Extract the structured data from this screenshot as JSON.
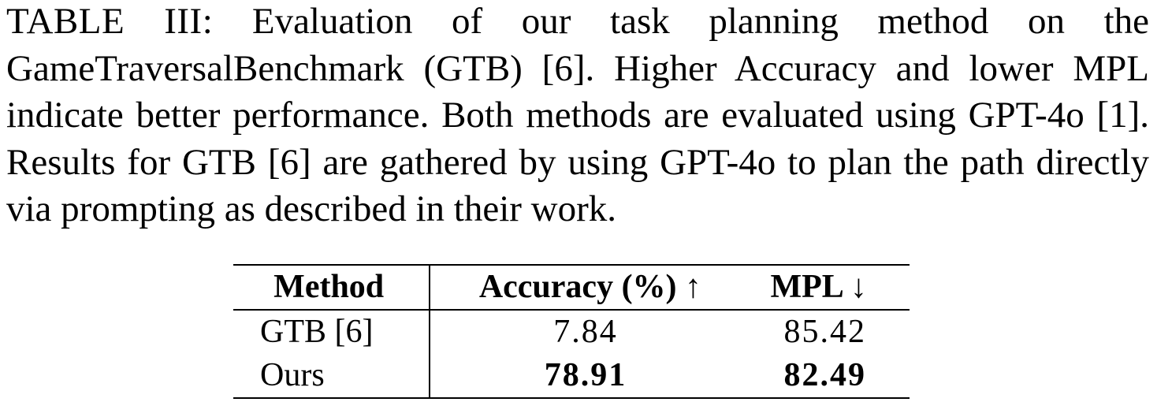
{
  "caption": {
    "label": "TABLE III:",
    "text": "Evaluation of our task planning method on the GameTraversalBenchmark (GTB) [6]. Higher Accuracy and lower MPL indicate better performance. Both methods are evaluated using GPT-4o [1]. Results for GTB [6] are gathered by using GPT-4o to plan the path directly via prompting as described in their work."
  },
  "table": {
    "headers": {
      "method": "Method",
      "accuracy": "Accuracy (%) ↑",
      "mpl": "MPL ↓"
    },
    "rows": [
      {
        "method": "GTB [6]",
        "accuracy": "7.84",
        "mpl": "85.42"
      },
      {
        "method": "Ours",
        "accuracy": "78.91",
        "mpl": "82.49"
      }
    ]
  }
}
